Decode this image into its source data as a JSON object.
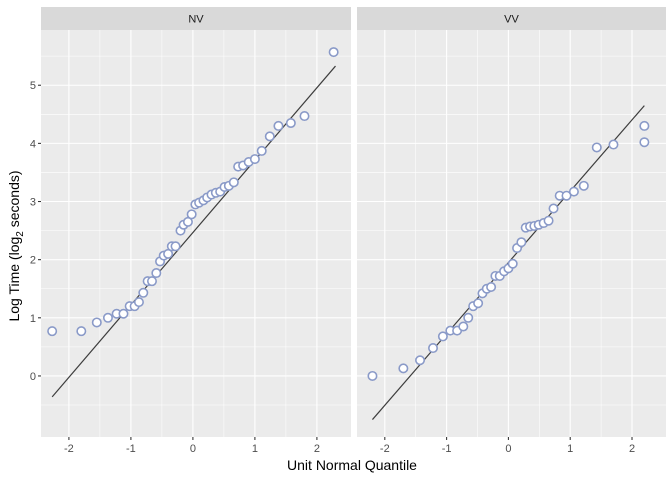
{
  "chart_data": {
    "type": "scatter",
    "subtype": "faceted normal Q-Q plot",
    "xlabel": "Unit Normal Quantile",
    "ylabel_main": "Log Time (log",
    "ylabel_sub": "2",
    "ylabel_tail": " seconds)",
    "xlim": [
      -2.45,
      2.55
    ],
    "ylim": [
      -1.05,
      5.95
    ],
    "x_ticks": [
      -2,
      -1,
      0,
      1,
      2
    ],
    "y_ticks": [
      0,
      1,
      2,
      3,
      4,
      5
    ],
    "grid": true,
    "colors": {
      "point": "#8a9ac8",
      "line": "#3d3d3d",
      "panel": "#ebebeb",
      "strip": "#d9d9d9"
    },
    "panels": [
      {
        "label": "NV",
        "fit_line": {
          "x": [
            -2.27,
            2.3
          ],
          "y": [
            -0.36,
            5.33
          ]
        },
        "points": [
          [
            -2.27,
            0.77
          ],
          [
            -1.8,
            0.77
          ],
          [
            -1.55,
            0.92
          ],
          [
            -1.37,
            1.0
          ],
          [
            -1.23,
            1.07
          ],
          [
            -1.12,
            1.07
          ],
          [
            -1.02,
            1.2
          ],
          [
            -0.94,
            1.2
          ],
          [
            -0.87,
            1.27
          ],
          [
            -0.8,
            1.43
          ],
          [
            -0.73,
            1.63
          ],
          [
            -0.66,
            1.63
          ],
          [
            -0.59,
            1.77
          ],
          [
            -0.53,
            1.97
          ],
          [
            -0.47,
            2.07
          ],
          [
            -0.4,
            2.1
          ],
          [
            -0.34,
            2.23
          ],
          [
            -0.28,
            2.23
          ],
          [
            -0.2,
            2.5
          ],
          [
            -0.15,
            2.6
          ],
          [
            -0.08,
            2.65
          ],
          [
            -0.02,
            2.78
          ],
          [
            0.04,
            2.95
          ],
          [
            0.1,
            2.98
          ],
          [
            0.17,
            3.02
          ],
          [
            0.23,
            3.07
          ],
          [
            0.3,
            3.12
          ],
          [
            0.37,
            3.15
          ],
          [
            0.44,
            3.17
          ],
          [
            0.51,
            3.25
          ],
          [
            0.58,
            3.27
          ],
          [
            0.66,
            3.33
          ],
          [
            0.73,
            3.6
          ],
          [
            0.81,
            3.62
          ],
          [
            0.9,
            3.68
          ],
          [
            1.0,
            3.73
          ],
          [
            1.11,
            3.87
          ],
          [
            1.24,
            4.12
          ],
          [
            1.38,
            4.3
          ],
          [
            1.58,
            4.35
          ],
          [
            1.8,
            4.47
          ],
          [
            2.27,
            5.57
          ]
        ]
      },
      {
        "label": "VV",
        "fit_line": {
          "x": [
            -2.2,
            2.2
          ],
          "y": [
            -0.75,
            4.65
          ]
        },
        "points": [
          [
            -2.2,
            0.0
          ],
          [
            -1.7,
            0.13
          ],
          [
            -1.43,
            0.27
          ],
          [
            -1.22,
            0.48
          ],
          [
            -1.06,
            0.68
          ],
          [
            -0.94,
            0.78
          ],
          [
            -0.83,
            0.78
          ],
          [
            -0.73,
            0.85
          ],
          [
            -0.65,
            1.0
          ],
          [
            -0.57,
            1.2
          ],
          [
            -0.49,
            1.25
          ],
          [
            -0.42,
            1.42
          ],
          [
            -0.35,
            1.5
          ],
          [
            -0.28,
            1.53
          ],
          [
            -0.21,
            1.72
          ],
          [
            -0.14,
            1.72
          ],
          [
            -0.07,
            1.8
          ],
          [
            0.0,
            1.85
          ],
          [
            0.07,
            1.93
          ],
          [
            0.14,
            2.2
          ],
          [
            0.21,
            2.3
          ],
          [
            0.28,
            2.55
          ],
          [
            0.35,
            2.57
          ],
          [
            0.42,
            2.58
          ],
          [
            0.49,
            2.6
          ],
          [
            0.57,
            2.63
          ],
          [
            0.65,
            2.67
          ],
          [
            0.73,
            2.88
          ],
          [
            0.83,
            3.1
          ],
          [
            0.94,
            3.1
          ],
          [
            1.06,
            3.17
          ],
          [
            1.22,
            3.27
          ],
          [
            1.43,
            3.93
          ],
          [
            1.7,
            3.98
          ],
          [
            2.2,
            4.02
          ],
          [
            2.2,
            4.3
          ]
        ]
      }
    ]
  }
}
